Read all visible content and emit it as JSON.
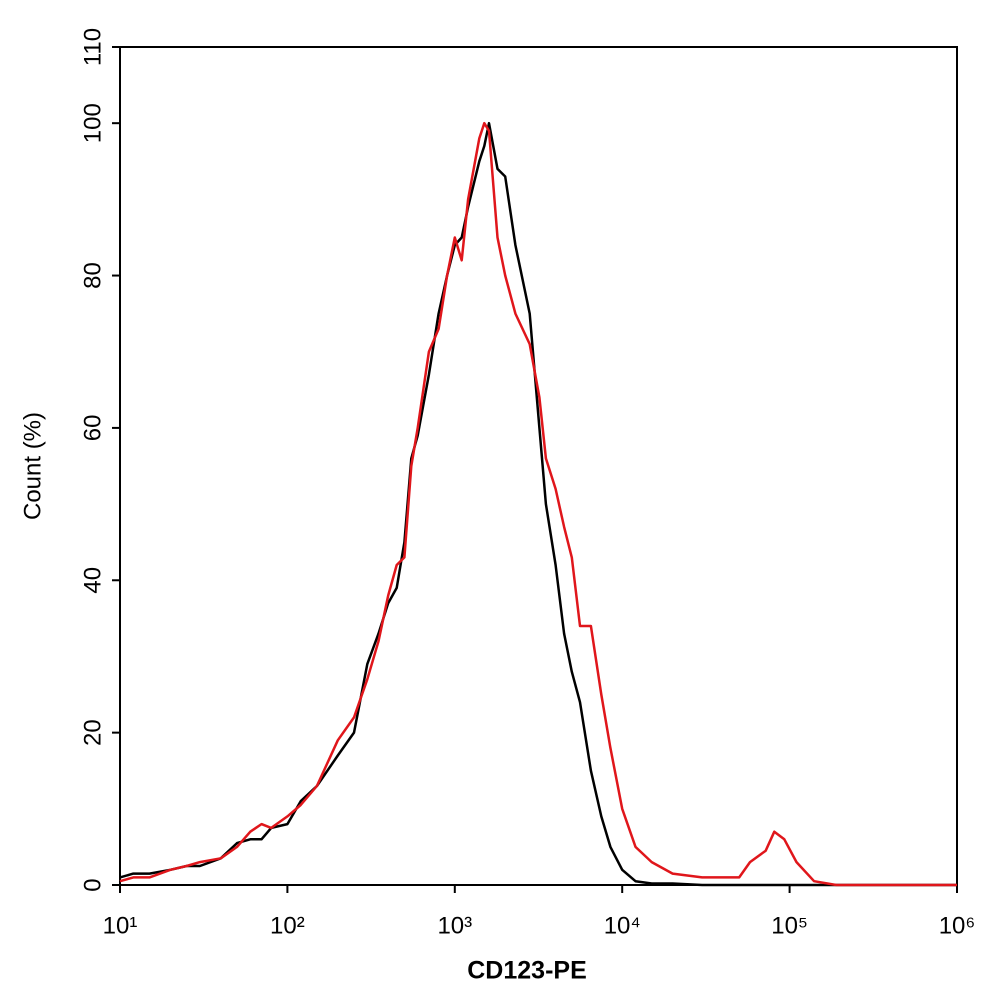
{
  "chart_data": {
    "type": "line",
    "xlabel": "CD123-PE",
    "ylabel": "Count  (%)",
    "xscale": "log",
    "grid": false,
    "xlim": [
      10,
      1000000
    ],
    "xticks": [
      {
        "value": 10,
        "label": "10¹"
      },
      {
        "value": 100,
        "label": "10²"
      },
      {
        "value": 1000,
        "label": "10³"
      },
      {
        "value": 10000,
        "label": "10⁴"
      },
      {
        "value": 100000,
        "label": "10⁵"
      },
      {
        "value": 1000000,
        "label": "10⁶"
      }
    ],
    "ylim": [
      0,
      110
    ],
    "yticks": [
      0,
      20,
      40,
      60,
      80,
      100,
      110
    ],
    "x": [
      10,
      12,
      15,
      20,
      25,
      30,
      40,
      50,
      60,
      70,
      80,
      100,
      120,
      150,
      200,
      250,
      300,
      350,
      400,
      450,
      500,
      550,
      600,
      700,
      800,
      900,
      1000,
      1100,
      1200,
      1400,
      1500,
      1600,
      1800,
      2000,
      2300,
      2800,
      3200,
      3500,
      4000,
      4500,
      5000,
      5600,
      6500,
      7500,
      8500,
      10000,
      12000,
      15000,
      20000,
      30000,
      50000,
      58000,
      72000,
      81000,
      93000,
      110000,
      140000,
      190000,
      1000000
    ],
    "series": [
      {
        "color": "#000000",
        "values": [
          1,
          1.5,
          1.5,
          2,
          2.5,
          2.5,
          3.5,
          5.5,
          6,
          6,
          7.5,
          8,
          11,
          13,
          17,
          20,
          29,
          33,
          37,
          39,
          45,
          56,
          59,
          67,
          75,
          80,
          84,
          85,
          89,
          95,
          97,
          100,
          94,
          93,
          84,
          75,
          60,
          50,
          42,
          33,
          28,
          24,
          15,
          9,
          5,
          2,
          0.5,
          0.2,
          0.2,
          0,
          0,
          0,
          0,
          0,
          0,
          0,
          0,
          0,
          0
        ]
      },
      {
        "color": "#e0161b",
        "values": [
          0.5,
          1,
          1,
          2,
          2.5,
          3,
          3.5,
          5,
          7,
          8,
          7.5,
          9,
          10.5,
          13,
          19,
          22,
          27,
          32,
          38,
          42,
          43,
          55,
          60,
          70,
          73,
          80,
          85,
          82,
          90,
          98,
          100,
          99,
          85,
          80,
          75,
          71,
          64,
          56,
          52,
          47,
          43,
          34,
          34,
          25,
          18,
          10,
          5,
          3,
          1.5,
          1,
          1,
          3,
          4.5,
          7,
          6,
          3,
          0.5,
          0,
          0
        ]
      }
    ]
  }
}
